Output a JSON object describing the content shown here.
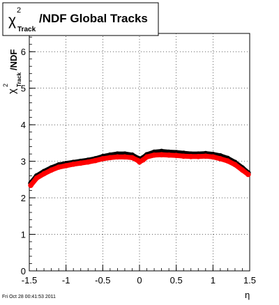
{
  "title_box": {
    "chi_symbol": "χ",
    "superscript": "2",
    "subscript": "Track",
    "rest": "/NDF  Global Tracks"
  },
  "y_axis_title": {
    "chi_symbol": "χ",
    "superscript": "2",
    "subscript": "Track",
    "rest": "/NDF"
  },
  "x_axis_title": "η",
  "footer_timestamp": "Fri Oct 28 00:41:53 2011",
  "colors": {
    "series_black": "#000000",
    "series_red": "#ff0000",
    "frame": "#000000",
    "grid": "#000000"
  },
  "chart_data": {
    "type": "scatter",
    "grid": true,
    "xlim": [
      -1.5,
      1.5
    ],
    "ylim": [
      0,
      6.5
    ],
    "x_ticks": [
      -1.5,
      -1,
      -0.5,
      0,
      0.5,
      1,
      1.5
    ],
    "x_tick_labels": [
      "-1.5",
      "-1",
      "-0.5",
      "0",
      "0.5",
      "1",
      "1.5"
    ],
    "y_ticks": [
      0,
      1,
      2,
      3,
      4,
      5,
      6
    ],
    "y_tick_labels": [
      "0",
      "1",
      "2",
      "3",
      "4",
      "5",
      "6"
    ],
    "series": [
      {
        "color": "#000000",
        "x": [
          -1.48,
          -1.4,
          -1.3,
          -1.2,
          -1.1,
          -1.0,
          -0.9,
          -0.8,
          -0.7,
          -0.6,
          -0.5,
          -0.4,
          -0.3,
          -0.2,
          -0.1,
          -0.02,
          0.0,
          0.05,
          0.1,
          0.2,
          0.3,
          0.4,
          0.5,
          0.6,
          0.7,
          0.8,
          0.9,
          1.0,
          1.1,
          1.2,
          1.3,
          1.4,
          1.48
        ],
        "y": [
          2.4,
          2.6,
          2.72,
          2.82,
          2.9,
          2.94,
          2.97,
          3.0,
          3.03,
          3.07,
          3.13,
          3.17,
          3.2,
          3.2,
          3.17,
          3.08,
          3.05,
          3.1,
          3.18,
          3.25,
          3.27,
          3.25,
          3.24,
          3.22,
          3.2,
          3.2,
          3.21,
          3.19,
          3.15,
          3.08,
          2.97,
          2.82,
          2.68
        ]
      },
      {
        "color": "#ff0000",
        "x": [
          -1.48,
          -1.4,
          -1.3,
          -1.2,
          -1.1,
          -1.0,
          -0.9,
          -0.8,
          -0.7,
          -0.6,
          -0.5,
          -0.4,
          -0.3,
          -0.2,
          -0.1,
          -0.02,
          0.0,
          0.05,
          0.1,
          0.2,
          0.3,
          0.4,
          0.5,
          0.6,
          0.7,
          0.8,
          0.9,
          1.0,
          1.1,
          1.2,
          1.3,
          1.4,
          1.48
        ],
        "y": [
          2.34,
          2.54,
          2.66,
          2.76,
          2.84,
          2.88,
          2.92,
          2.95,
          2.98,
          3.02,
          3.07,
          3.1,
          3.12,
          3.12,
          3.1,
          3.02,
          2.98,
          3.04,
          3.12,
          3.17,
          3.18,
          3.17,
          3.16,
          3.14,
          3.13,
          3.13,
          3.14,
          3.12,
          3.07,
          3.01,
          2.91,
          2.76,
          2.64
        ]
      }
    ]
  }
}
